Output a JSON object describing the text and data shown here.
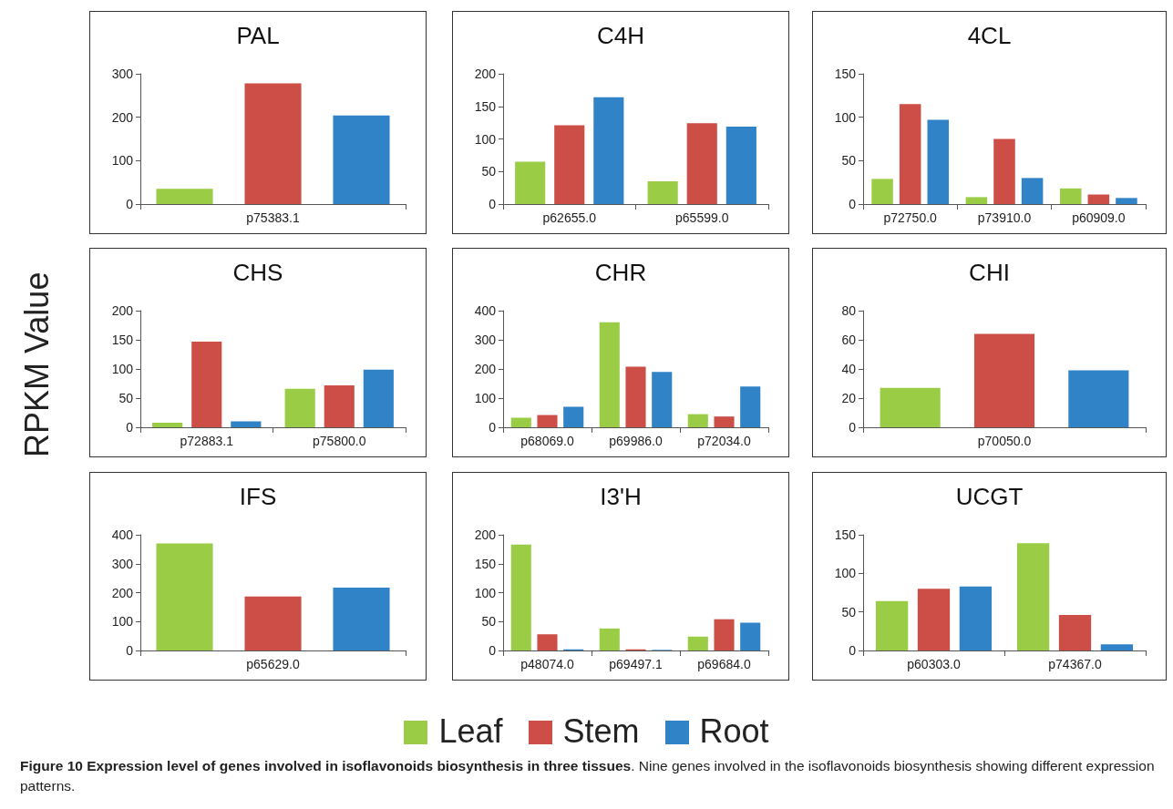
{
  "chart_data": [
    {
      "type": "bar",
      "title": "PAL",
      "ylabel": "RPKM Value",
      "categories": [
        null,
        "p75383.1",
        null
      ],
      "ylim": [
        0,
        300
      ],
      "yticks": [
        0,
        100,
        200,
        300
      ],
      "grid": false,
      "annotations": [
        "Figure 10 Expression level of genes involved in isoflavonoids biosynthesis in three tissues",
        ". Nine genes involved in the isoflavonoids biosynthesis showing different expression patterns."
      ],
      "values": [
        35,
        278,
        204
      ],
      "colors": [
        "#9acd45",
        "#cc4e47",
        "#2f83c6"
      ]
    },
    {
      "type": "bar",
      "title": "C4H",
      "categories": [
        "p62655.0",
        "p65599.0"
      ],
      "ylim": [
        0,
        200
      ],
      "yticks": [
        0,
        50,
        100,
        150,
        200
      ],
      "grid": false,
      "series": [
        {
          "color": "#9acd45",
          "values": [
            65,
            35
          ]
        },
        {
          "color": "#cc4e47",
          "values": [
            121,
            124
          ]
        },
        {
          "color": "#2f83c6",
          "values": [
            164,
            119
          ]
        }
      ]
    },
    {
      "type": "bar",
      "title": "4CL",
      "categories": [
        "p72750.0",
        "p73910.0",
        "p60909.0"
      ],
      "ylim": [
        0,
        150
      ],
      "yticks": [
        0,
        50,
        100,
        150
      ],
      "grid": false,
      "series": [
        {
          "color": "#9acd45",
          "values": [
            29,
            8,
            18
          ]
        },
        {
          "color": "#cc4e47",
          "values": [
            115,
            75,
            11
          ]
        },
        {
          "color": "#2f83c6",
          "values": [
            97,
            30,
            7
          ]
        }
      ]
    },
    {
      "type": "bar",
      "title": "CHS",
      "categories": [
        "p72883.1",
        "p75800.0"
      ],
      "ylim": [
        0,
        200
      ],
      "yticks": [
        0,
        50,
        100,
        150,
        200
      ],
      "grid": false,
      "series": [
        {
          "color": "#9acd45",
          "values": [
            8,
            66
          ]
        },
        {
          "color": "#cc4e47",
          "values": [
            147,
            72
          ]
        },
        {
          "color": "#2f83c6",
          "values": [
            10,
            99
          ]
        }
      ]
    },
    {
      "type": "bar",
      "title": "CHR",
      "categories": [
        "p68069.0",
        "p69986.0",
        "p72034.0"
      ],
      "ylim": [
        0,
        400
      ],
      "yticks": [
        0,
        100,
        200,
        300,
        400
      ],
      "grid": false,
      "series": [
        {
          "color": "#9acd45",
          "values": [
            33,
            360,
            45
          ]
        },
        {
          "color": "#cc4e47",
          "values": [
            42,
            208,
            37
          ]
        },
        {
          "color": "#2f83c6",
          "values": [
            70,
            190,
            140
          ]
        }
      ]
    },
    {
      "type": "bar",
      "title": "CHI",
      "categories": [
        null,
        "p70050.0",
        null
      ],
      "ylim": [
        0,
        80
      ],
      "yticks": [
        0,
        20,
        40,
        60,
        80
      ],
      "grid": false,
      "values": [
        27,
        64,
        39
      ],
      "colors": [
        "#9acd45",
        "#cc4e47",
        "#2f83c6"
      ]
    },
    {
      "type": "bar",
      "title": "IFS",
      "categories": [
        null,
        "p65629.0",
        null
      ],
      "ylim": [
        0,
        400
      ],
      "yticks": [
        0,
        100,
        200,
        300,
        400
      ],
      "grid": false,
      "values": [
        370,
        187,
        217
      ],
      "colors": [
        "#9acd45",
        "#cc4e47",
        "#2f83c6"
      ]
    },
    {
      "type": "bar",
      "title": "I3'H",
      "categories": [
        "p48074.0",
        "p69497.1",
        "p69684.0"
      ],
      "ylim": [
        0,
        200
      ],
      "yticks": [
        0,
        50,
        100,
        150,
        200
      ],
      "grid": false,
      "series": [
        {
          "color": "#9acd45",
          "values": [
            183,
            38,
            24
          ]
        },
        {
          "color": "#cc4e47",
          "values": [
            28,
            2,
            54
          ]
        },
        {
          "color": "#2f83c6",
          "values": [
            2,
            1,
            48
          ]
        }
      ]
    },
    {
      "type": "bar",
      "title": "UCGT",
      "categories": [
        "p60303.0",
        "p74367.0"
      ],
      "ylim": [
        0,
        150
      ],
      "yticks": [
        0,
        50,
        100,
        150
      ],
      "grid": false,
      "legend": "bottom",
      "series": [
        {
          "name": "Leaf",
          "color": "#9acd45",
          "values": [
            64,
            139
          ]
        },
        {
          "name": "Stem",
          "color": "#cc4e47",
          "values": [
            80,
            46
          ]
        },
        {
          "name": "Root",
          "color": "#2f83c6",
          "values": [
            83,
            8
          ]
        }
      ]
    }
  ]
}
